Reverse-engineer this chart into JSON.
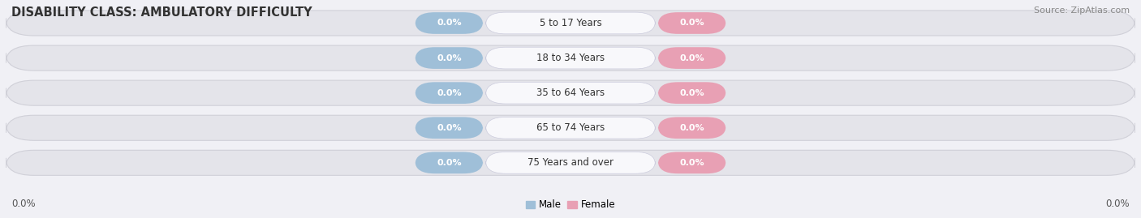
{
  "title": "DISABILITY CLASS: AMBULATORY DIFFICULTY",
  "source_text": "Source: ZipAtlas.com",
  "categories": [
    "5 to 17 Years",
    "18 to 34 Years",
    "35 to 64 Years",
    "65 to 74 Years",
    "75 Years and over"
  ],
  "male_values": [
    0.0,
    0.0,
    0.0,
    0.0,
    0.0
  ],
  "female_values": [
    0.0,
    0.0,
    0.0,
    0.0,
    0.0
  ],
  "male_color": "#9fbfd8",
  "female_color": "#e8a0b4",
  "bar_bg_color": "#e4e4ea",
  "center_label_color": "#f8f8fb",
  "bar_height": 0.72,
  "x_left_label": "0.0%",
  "x_right_label": "0.0%",
  "legend_male": "Male",
  "legend_female": "Female",
  "title_fontsize": 10.5,
  "source_fontsize": 8,
  "label_fontsize": 8.5,
  "category_fontsize": 8.5,
  "value_fontsize": 8,
  "figsize": [
    14.06,
    2.69
  ],
  "dpi": 100,
  "background_color": "#f0f0f5"
}
